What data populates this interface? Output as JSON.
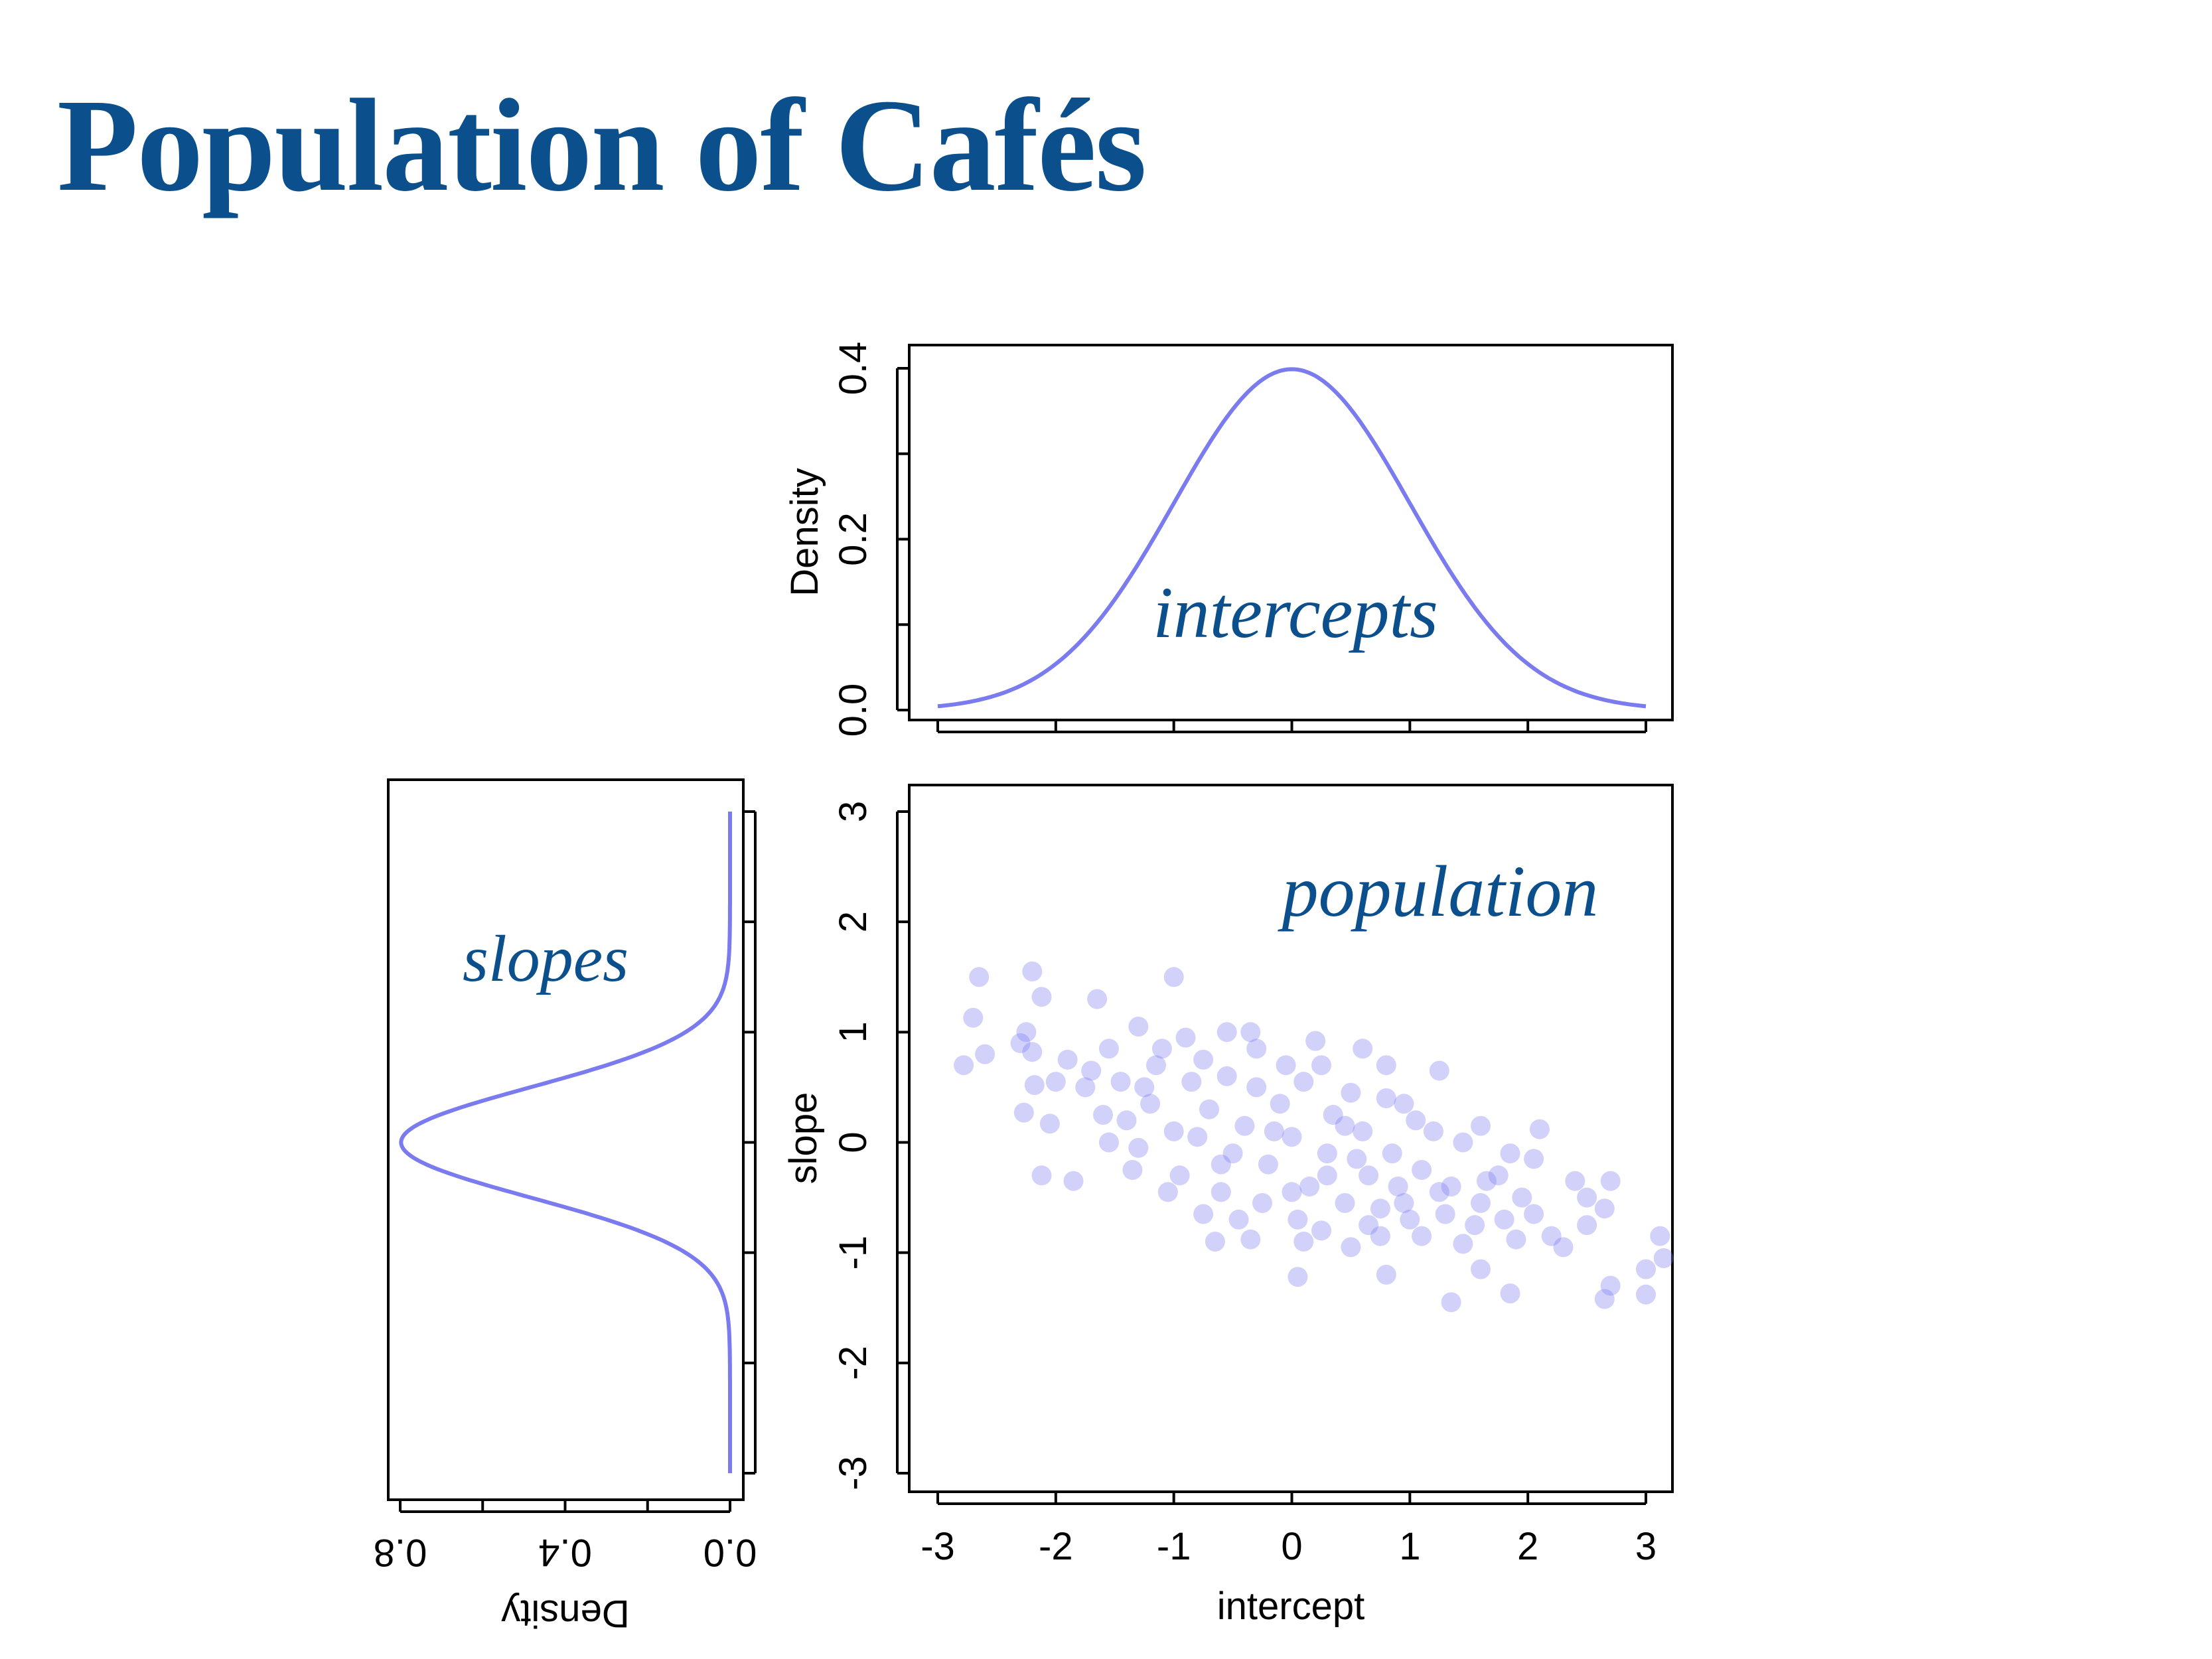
{
  "page": {
    "title": "Population of Cafés"
  },
  "colors": {
    "title": "#0b4f8c",
    "series": "#7b7bf0",
    "axis": "#000000",
    "annotation": "#0b4f8c"
  },
  "chart_data": [
    {
      "panel": "top",
      "type": "line",
      "title": "",
      "annotation": "intercepts",
      "xlabel": "",
      "ylabel": "Density",
      "xlim": [
        -3.2,
        3.2
      ],
      "ylim": [
        0,
        0.4
      ],
      "xticks": [
        "",
        "",
        "",
        "",
        "",
        "",
        ""
      ],
      "yticks": [
        "0.0",
        "0.2",
        "0.4"
      ],
      "series": [
        {
          "distribution": "normal",
          "mean": 0,
          "sd": 1,
          "x_range": [
            -3,
            3
          ]
        }
      ]
    },
    {
      "panel": "left",
      "type": "line",
      "title": "",
      "annotation": "slopes",
      "xlabel": "Density",
      "ylabel": "",
      "xlim": [
        0,
        0.8
      ],
      "ylim": [
        -3.2,
        3.2
      ],
      "xticks": [
        "0.0",
        "0.4",
        "0.8"
      ],
      "yticks": [
        "",
        "",
        "",
        "",
        "",
        "",
        ""
      ],
      "series": [
        {
          "distribution": "normal",
          "mean": 0,
          "sd": 0.5,
          "y_range": [
            -3,
            3
          ]
        }
      ]
    },
    {
      "panel": "main",
      "type": "scatter",
      "title": "",
      "annotation": "population",
      "xlabel": "intercept",
      "ylabel": "slope",
      "xlim": [
        -3.2,
        3.2
      ],
      "ylim": [
        -3.2,
        3.2
      ],
      "xticks": [
        "-3",
        "-2",
        "-1",
        "0",
        "1",
        "2",
        "3"
      ],
      "yticks": [
        "-3",
        "-2",
        "-1",
        "0",
        "1",
        "2",
        "3"
      ],
      "series": [
        {
          "points": [
            [
              -2.65,
              1.5
            ],
            [
              -2.7,
              1.13
            ],
            [
              -2.6,
              0.8
            ],
            [
              -2.78,
              0.7
            ],
            [
              -2.2,
              1.55
            ],
            [
              -2.12,
              1.32
            ],
            [
              -2.25,
              1.0
            ],
            [
              -2.2,
              0.82
            ],
            [
              -2.18,
              0.52
            ],
            [
              -2.27,
              0.27
            ],
            [
              -2.05,
              0.17
            ],
            [
              -2.12,
              -0.3
            ],
            [
              -1.85,
              -0.35
            ],
            [
              -1.0,
              1.5
            ],
            [
              -1.65,
              1.3
            ],
            [
              -1.3,
              1.05
            ],
            [
              -0.55,
              1.0
            ],
            [
              -0.35,
              1.0
            ],
            [
              0.2,
              0.92
            ],
            [
              0.6,
              0.85
            ],
            [
              0.8,
              0.7
            ],
            [
              1.25,
              0.65
            ],
            [
              0.95,
              0.35
            ],
            [
              1.6,
              0.15
            ],
            [
              2.1,
              0.12
            ],
            [
              2.05,
              -0.15
            ],
            [
              2.4,
              -0.35
            ],
            [
              2.7,
              -0.35
            ],
            [
              2.5,
              -0.5
            ],
            [
              2.65,
              -0.6
            ],
            [
              2.5,
              -0.75
            ],
            [
              2.2,
              -0.85
            ],
            [
              2.3,
              -0.95
            ],
            [
              2.7,
              -1.3
            ],
            [
              2.65,
              -1.42
            ],
            [
              3.0,
              -1.15
            ],
            [
              3.12,
              -0.85
            ],
            [
              3.15,
              -1.05
            ],
            [
              3.0,
              -1.38
            ],
            [
              1.35,
              -1.45
            ],
            [
              1.85,
              -1.37
            ],
            [
              0.8,
              -1.2
            ],
            [
              0.05,
              -1.22
            ],
            [
              1.6,
              -1.15
            ],
            [
              1.9,
              -0.88
            ],
            [
              0.5,
              -0.95
            ],
            [
              -0.65,
              -0.9
            ],
            [
              -0.35,
              -0.88
            ],
            [
              0.1,
              -0.9
            ],
            [
              0.75,
              -0.85
            ],
            [
              1.1,
              -0.85
            ],
            [
              1.45,
              -0.92
            ],
            [
              -1.3,
              -0.05
            ],
            [
              -1.6,
              0.25
            ],
            [
              -1.45,
              0.55
            ],
            [
              -1.15,
              0.7
            ],
            [
              -0.85,
              0.55
            ],
            [
              -0.7,
              0.3
            ],
            [
              -0.3,
              0.5
            ],
            [
              0.1,
              0.55
            ],
            [
              0.35,
              0.25
            ],
            [
              0.6,
              0.1
            ],
            [
              0.85,
              -0.1
            ],
            [
              1.1,
              -0.25
            ],
            [
              1.35,
              -0.4
            ],
            [
              1.6,
              -0.55
            ],
            [
              -0.5,
              -0.1
            ],
            [
              -0.2,
              -0.2
            ],
            [
              0.15,
              -0.4
            ],
            [
              0.45,
              -0.55
            ],
            [
              0.75,
              -0.6
            ],
            [
              -1.0,
              0.1
            ],
            [
              -0.95,
              -0.3
            ],
            [
              -0.6,
              -0.45
            ],
            [
              -0.25,
              -0.55
            ],
            [
              0.05,
              -0.7
            ],
            [
              -1.2,
              0.35
            ],
            [
              -0.4,
              0.15
            ],
            [
              0.0,
              0.05
            ],
            [
              0.3,
              -0.1
            ],
            [
              -0.1,
              0.35
            ],
            [
              0.5,
              0.45
            ],
            [
              -0.75,
              0.75
            ],
            [
              -1.9,
              0.75
            ],
            [
              -2.0,
              0.55
            ],
            [
              -1.75,
              0.5
            ],
            [
              -1.55,
              0.85
            ],
            [
              -1.4,
              0.2
            ],
            [
              -1.1,
              0.85
            ],
            [
              -0.9,
              0.95
            ],
            [
              -0.05,
              0.7
            ],
            [
              0.25,
              0.7
            ],
            [
              0.45,
              0.15
            ],
            [
              0.65,
              -0.3
            ],
            [
              0.9,
              -0.4
            ],
            [
              1.2,
              0.1
            ],
            [
              1.45,
              0.0
            ],
            [
              1.75,
              -0.3
            ],
            [
              1.95,
              -0.5
            ],
            [
              -1.55,
              0.0
            ],
            [
              -1.35,
              -0.25
            ],
            [
              -0.75,
              -0.65
            ],
            [
              -0.45,
              -0.7
            ],
            [
              0.25,
              -0.8
            ],
            [
              1.0,
              -0.7
            ],
            [
              1.3,
              -0.65
            ],
            [
              1.55,
              -0.75
            ],
            [
              1.8,
              -0.7
            ],
            [
              2.05,
              -0.65
            ],
            [
              -0.3,
              0.85
            ],
            [
              0.8,
              0.4
            ],
            [
              1.05,
              0.2
            ],
            [
              -2.3,
              0.9
            ],
            [
              -1.7,
              0.65
            ],
            [
              -1.25,
              0.5
            ],
            [
              -0.55,
              0.6
            ],
            [
              -0.15,
              0.1
            ],
            [
              0.55,
              -0.15
            ],
            [
              1.25,
              -0.45
            ],
            [
              -0.8,
              0.05
            ],
            [
              -0.6,
              -0.2
            ],
            [
              0.3,
              -0.3
            ],
            [
              0.95,
              -0.55
            ],
            [
              -1.05,
              -0.45
            ],
            [
              0.0,
              -0.45
            ],
            [
              0.65,
              -0.75
            ],
            [
              1.65,
              -0.35
            ],
            [
              1.85,
              -0.1
            ]
          ]
        }
      ]
    }
  ]
}
